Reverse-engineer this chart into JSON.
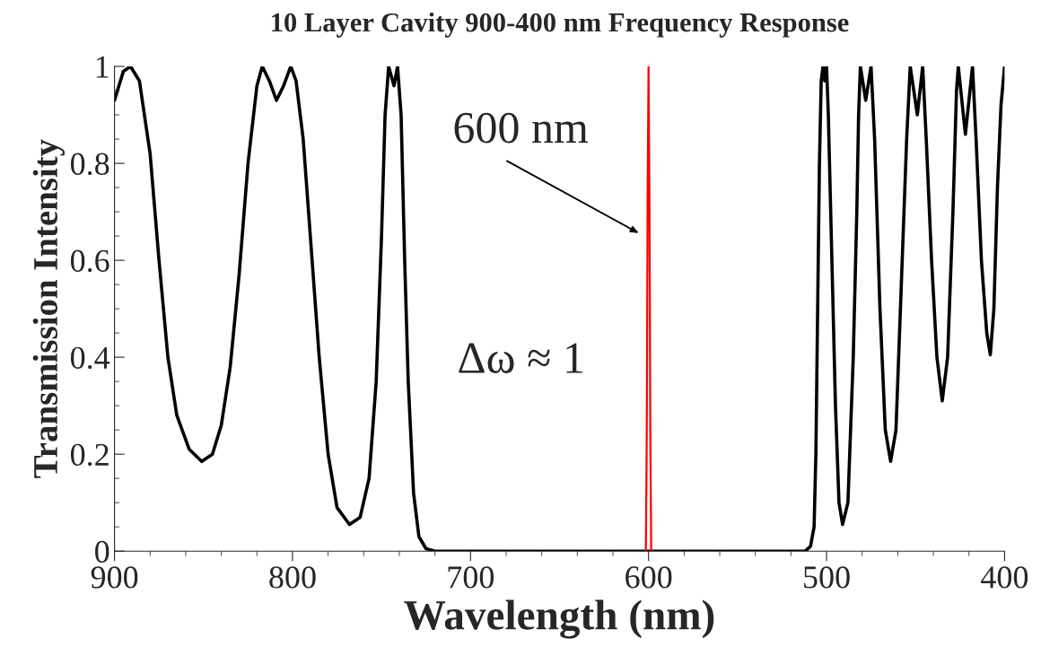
{
  "chart_data": {
    "type": "line",
    "title": "10 Layer Cavity 900-400 nm Frequency Response",
    "xlabel": "Wavelength (nm)",
    "ylabel": "Transmission Intensity",
    "xlim": [
      900,
      400
    ],
    "ylim": [
      0,
      1
    ],
    "xticks": [
      900,
      800,
      700,
      600,
      500,
      400
    ],
    "yticks": [
      0,
      0.2,
      0.4,
      0.6,
      0.8,
      1
    ],
    "grid": false,
    "legend": false,
    "line_style": "solid",
    "marker": "none",
    "series": [
      {
        "color": "#000000",
        "x": [
          900,
          895,
          891,
          886,
          880,
          875,
          870,
          865,
          858,
          851,
          845,
          840,
          835,
          830,
          825,
          820,
          817,
          813,
          809,
          805,
          801,
          798,
          794,
          789,
          785,
          780,
          775,
          768,
          762,
          757,
          753,
          750,
          748,
          746,
          743,
          741,
          739,
          737,
          735,
          732,
          729,
          725,
          720,
          700,
          650,
          600,
          550,
          512,
          509,
          507,
          506,
          505,
          504,
          503,
          502,
          501,
          500,
          499,
          497,
          495,
          493,
          491,
          488,
          485,
          483,
          482,
          481,
          478,
          475,
          473,
          470,
          467,
          464,
          461,
          458,
          455,
          453,
          449,
          446,
          444,
          441,
          438,
          435,
          432,
          429,
          427,
          426,
          422,
          418,
          416,
          413,
          410,
          408,
          406,
          404,
          402,
          400
        ],
        "values": [
          0.93,
          0.99,
          1.0,
          0.97,
          0.82,
          0.6,
          0.4,
          0.28,
          0.21,
          0.185,
          0.2,
          0.26,
          0.38,
          0.57,
          0.8,
          0.96,
          1.0,
          0.97,
          0.93,
          0.96,
          1.0,
          0.97,
          0.85,
          0.6,
          0.4,
          0.2,
          0.09,
          0.055,
          0.07,
          0.15,
          0.35,
          0.65,
          0.9,
          1.0,
          0.96,
          1.0,
          0.9,
          0.6,
          0.35,
          0.12,
          0.03,
          0.005,
          0,
          0,
          0,
          0,
          0,
          0,
          0.01,
          0.05,
          0.2,
          0.5,
          0.8,
          0.97,
          1.0,
          0.97,
          1.0,
          0.9,
          0.6,
          0.3,
          0.1,
          0.055,
          0.1,
          0.4,
          0.7,
          0.9,
          1.0,
          0.93,
          1.0,
          0.85,
          0.5,
          0.25,
          0.185,
          0.25,
          0.55,
          0.85,
          1.0,
          0.9,
          1.0,
          0.85,
          0.6,
          0.4,
          0.31,
          0.4,
          0.7,
          0.95,
          1.0,
          0.86,
          1.0,
          0.85,
          0.6,
          0.45,
          0.405,
          0.5,
          0.75,
          0.92,
          1.0
        ]
      },
      {
        "color": "#ff0000",
        "x": [
          601.5,
          601,
          600.5,
          600,
          599.5,
          599,
          598.5
        ],
        "values": [
          0,
          0.24,
          0.74,
          1.0,
          0.74,
          0.24,
          0
        ]
      }
    ],
    "annotations": [
      "600 nm",
      "Δω ≈ 1"
    ]
  }
}
